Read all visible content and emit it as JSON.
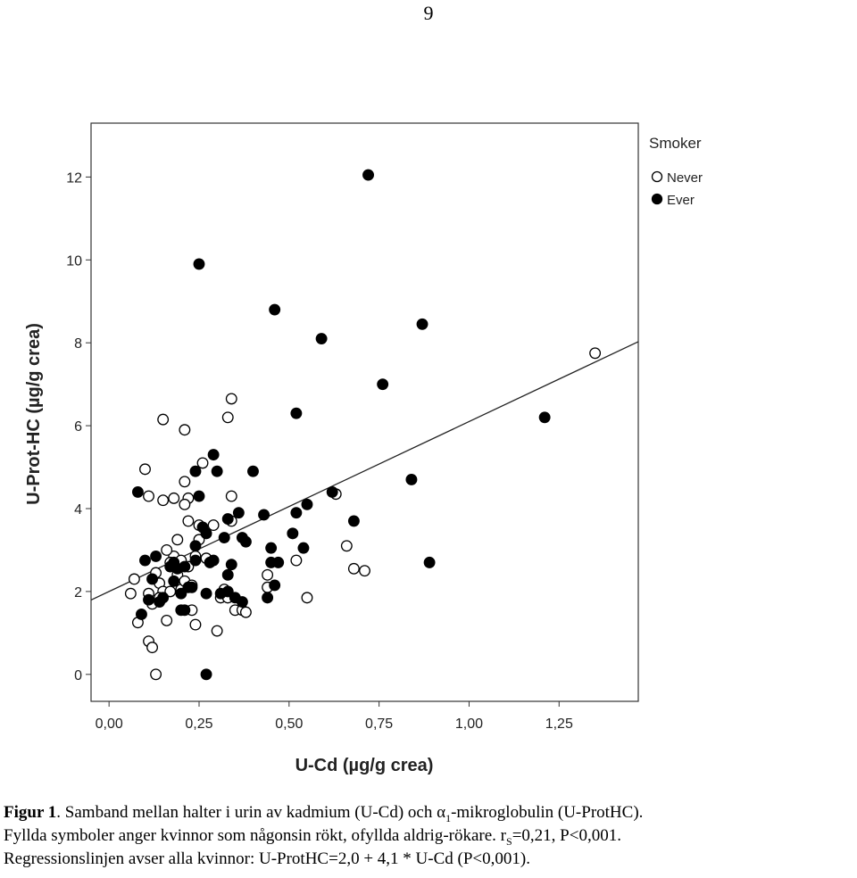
{
  "page_number": "9",
  "chart_data": {
    "type": "scatter",
    "xlabel": "U-Cd (µg/g crea)",
    "ylabel": "U-Prot-HC (µg/g crea)",
    "xlim": [
      -0.05,
      1.47
    ],
    "ylim": [
      -0.65,
      13.3
    ],
    "x_ticks": [
      0,
      0.25,
      0.5,
      0.75,
      1.0,
      1.25
    ],
    "x_tick_labels": [
      "0,00",
      "0,25",
      "0,50",
      "0,75",
      "1,00",
      "1,25"
    ],
    "y_ticks": [
      0,
      2,
      4,
      6,
      8,
      10,
      12
    ],
    "y_tick_labels": [
      "0",
      "2",
      "4",
      "6",
      "8",
      "10",
      "12"
    ],
    "grid": false,
    "legend": {
      "title": "Smoker",
      "placement": "top-right"
    },
    "regression": {
      "intercept": 2.0,
      "slope": 4.1
    },
    "series": [
      {
        "name": "Never",
        "marker": "open-circle",
        "points": [
          [
            0.1,
            4.95
          ],
          [
            0.11,
            4.3
          ],
          [
            0.15,
            4.2
          ],
          [
            0.15,
            6.15
          ],
          [
            0.18,
            4.25
          ],
          [
            0.21,
            4.65
          ],
          [
            0.21,
            5.9
          ],
          [
            0.22,
            4.25
          ],
          [
            0.22,
            3.7
          ],
          [
            0.26,
            5.1
          ],
          [
            0.34,
            6.65
          ],
          [
            0.33,
            6.2
          ],
          [
            0.34,
            4.3
          ],
          [
            0.34,
            3.7
          ],
          [
            0.06,
            1.95
          ],
          [
            0.07,
            2.3
          ],
          [
            0.08,
            1.25
          ],
          [
            0.11,
            1.95
          ],
          [
            0.11,
            0.8
          ],
          [
            0.12,
            0.65
          ],
          [
            0.13,
            0.0
          ],
          [
            0.13,
            2.45
          ],
          [
            0.14,
            2.2
          ],
          [
            0.15,
            2.0
          ],
          [
            0.16,
            1.3
          ],
          [
            0.17,
            2.0
          ],
          [
            0.18,
            2.85
          ],
          [
            0.19,
            2.4
          ],
          [
            0.19,
            3.25
          ],
          [
            0.2,
            2.05
          ],
          [
            0.21,
            4.1
          ],
          [
            0.21,
            2.25
          ],
          [
            0.22,
            2.6
          ],
          [
            0.23,
            1.55
          ],
          [
            0.24,
            1.2
          ],
          [
            0.24,
            2.85
          ],
          [
            0.25,
            3.25
          ],
          [
            0.25,
            3.6
          ],
          [
            0.27,
            2.8
          ],
          [
            0.29,
            3.6
          ],
          [
            0.3,
            1.05
          ],
          [
            0.31,
            1.85
          ],
          [
            0.32,
            2.05
          ],
          [
            0.33,
            1.85
          ],
          [
            0.35,
            1.55
          ],
          [
            0.37,
            1.55
          ],
          [
            0.38,
            1.5
          ],
          [
            0.44,
            2.4
          ],
          [
            0.52,
            2.75
          ],
          [
            0.55,
            1.85
          ],
          [
            0.63,
            4.35
          ],
          [
            0.66,
            3.1
          ],
          [
            0.68,
            2.55
          ],
          [
            0.71,
            2.5
          ],
          [
            1.35,
            7.75
          ],
          [
            0.17,
            2.7
          ],
          [
            0.23,
            2.15
          ],
          [
            0.14,
            1.85
          ],
          [
            0.2,
            2.75
          ],
          [
            0.16,
            3.0
          ],
          [
            0.44,
            2.1
          ],
          [
            0.12,
            1.7
          ]
        ]
      },
      {
        "name": "Ever",
        "marker": "filled-circle",
        "points": [
          [
            0.72,
            12.05
          ],
          [
            0.25,
            9.9
          ],
          [
            0.46,
            8.8
          ],
          [
            0.87,
            8.45
          ],
          [
            0.59,
            8.1
          ],
          [
            0.76,
            7.0
          ],
          [
            1.21,
            6.2
          ],
          [
            0.52,
            6.3
          ],
          [
            0.29,
            5.3
          ],
          [
            0.24,
            4.9
          ],
          [
            0.3,
            4.9
          ],
          [
            0.4,
            4.9
          ],
          [
            0.62,
            4.4
          ],
          [
            0.84,
            4.7
          ],
          [
            0.08,
            4.4
          ],
          [
            0.25,
            4.3
          ],
          [
            0.36,
            3.9
          ],
          [
            0.43,
            3.85
          ],
          [
            0.55,
            4.1
          ],
          [
            0.52,
            3.9
          ],
          [
            0.68,
            3.7
          ],
          [
            0.26,
            3.55
          ],
          [
            0.27,
            3.4
          ],
          [
            0.32,
            3.3
          ],
          [
            0.37,
            3.3
          ],
          [
            0.45,
            3.05
          ],
          [
            0.54,
            3.05
          ],
          [
            0.51,
            3.4
          ],
          [
            0.89,
            2.7
          ],
          [
            0.13,
            2.85
          ],
          [
            0.1,
            2.75
          ],
          [
            0.17,
            2.6
          ],
          [
            0.21,
            2.6
          ],
          [
            0.24,
            2.75
          ],
          [
            0.28,
            2.7
          ],
          [
            0.34,
            2.65
          ],
          [
            0.38,
            3.2
          ],
          [
            0.45,
            2.7
          ],
          [
            0.47,
            2.7
          ],
          [
            0.33,
            2.4
          ],
          [
            0.09,
            1.45
          ],
          [
            0.12,
            2.3
          ],
          [
            0.14,
            1.75
          ],
          [
            0.15,
            1.85
          ],
          [
            0.18,
            2.25
          ],
          [
            0.19,
            2.55
          ],
          [
            0.2,
            1.95
          ],
          [
            0.21,
            1.55
          ],
          [
            0.22,
            2.1
          ],
          [
            0.23,
            2.1
          ],
          [
            0.27,
            1.95
          ],
          [
            0.29,
            2.75
          ],
          [
            0.31,
            1.95
          ],
          [
            0.33,
            2.0
          ],
          [
            0.35,
            1.85
          ],
          [
            0.37,
            1.75
          ],
          [
            0.44,
            1.85
          ],
          [
            0.46,
            2.15
          ],
          [
            0.27,
            0.0
          ],
          [
            0.2,
            1.55
          ],
          [
            0.33,
            3.75
          ],
          [
            0.18,
            2.7
          ],
          [
            0.24,
            3.1
          ],
          [
            0.11,
            1.8
          ]
        ]
      }
    ]
  },
  "caption": {
    "line1_bold": "Figur 1",
    "line1_pre": ". Samband mellan halter i urin av kadmium (U-Cd) och α",
    "line1_sub": "1",
    "line1_post": "-mikroglobulin (U-ProtHC).",
    "line2_pre": "Fyllda symboler anger kvinnor som någonsin rökt, ofyllda aldrig-rökare. r",
    "line2_sub": "S",
    "line2_post": "=0,21, P<0,001.",
    "line3": "Regressionslinjen avser alla kvinnor: U-ProtHC=2,0 + 4,1 * U-Cd (P<0,001)."
  }
}
